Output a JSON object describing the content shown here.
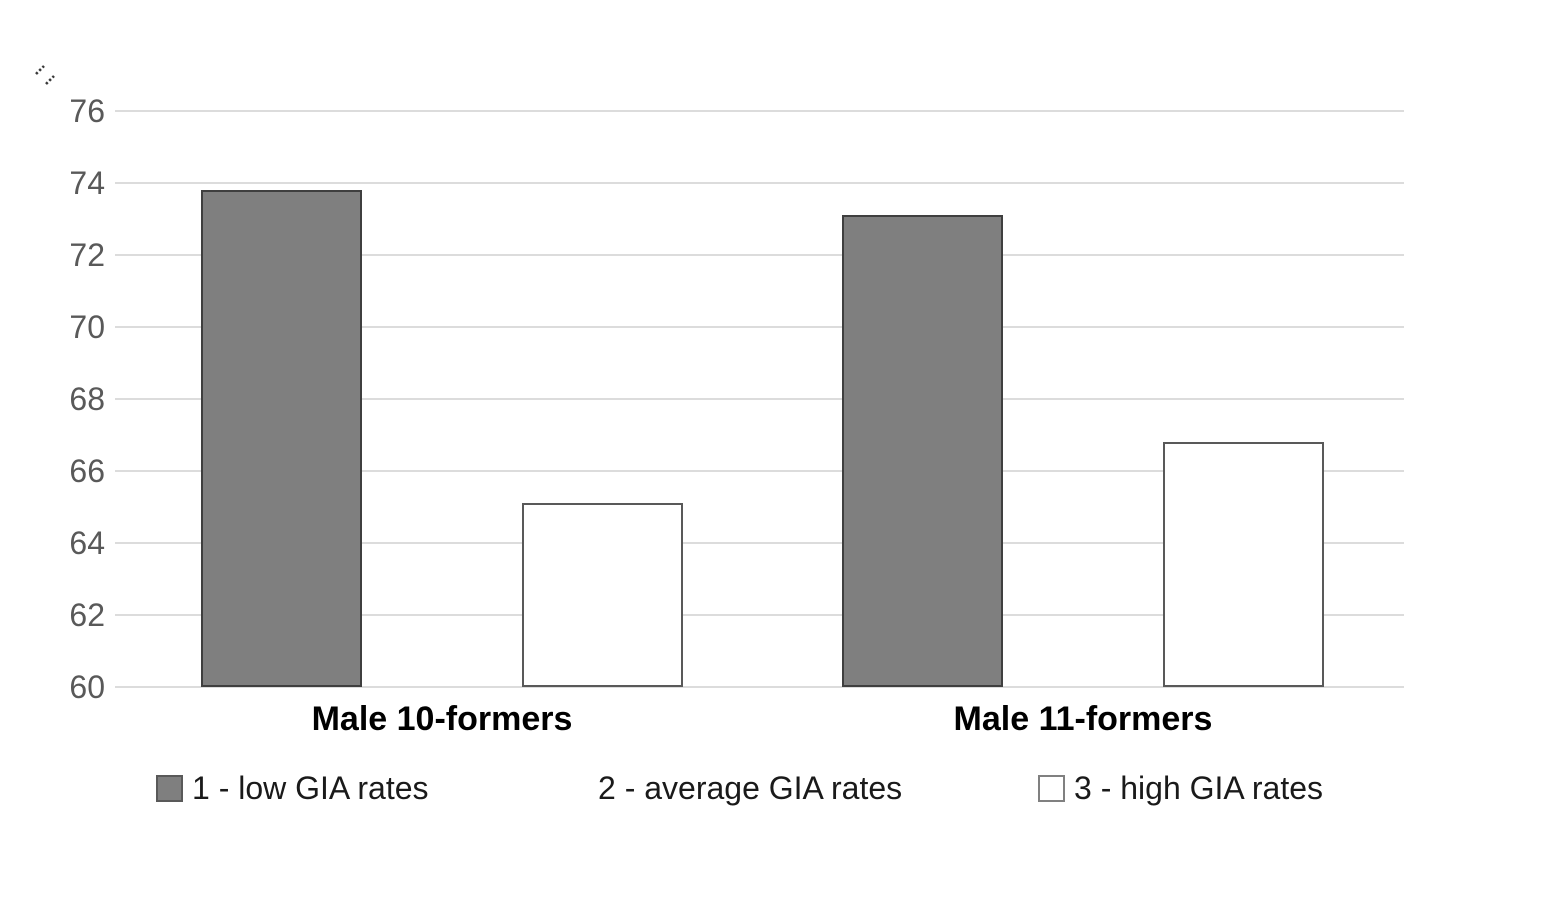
{
  "page": {
    "background": "#ffffff"
  },
  "chart_data": {
    "type": "bar",
    "title": "",
    "categories": [
      "Male 10-formers",
      "Male 11-formers"
    ],
    "series": [
      {
        "name": "1 - low GIA rates",
        "values": [
          73.8,
          73.1
        ],
        "fill": "#7f7f7f",
        "border": "#3f3f3f"
      },
      {
        "name": "2 - average GIA rates",
        "values": [
          null,
          null
        ],
        "fill": "#ffffff",
        "border": "none"
      },
      {
        "name": "3 - high GIA rates",
        "values": [
          65.1,
          66.8
        ],
        "fill": "#ffffff",
        "border": "#595959"
      }
    ],
    "xlabel": "",
    "ylabel": "",
    "ylim": [
      60,
      76
    ],
    "yticks": [
      60,
      62,
      64,
      66,
      68,
      70,
      72,
      74,
      76
    ],
    "grid": true,
    "gridline_color": "#dcdcdc",
    "tick_label_color": "#595959",
    "category_label_color": "#000000",
    "legend_position": "bottom"
  },
  "legend": {
    "items": [
      {
        "label": "1 - low GIA rates",
        "swatch_fill": "#7f7f7f",
        "swatch_border": "#595959"
      },
      {
        "label": "2 - average GIA rates",
        "swatch_fill": "none",
        "swatch_border": "none"
      },
      {
        "label": "3 - high GIA rates",
        "swatch_fill": "#ffffff",
        "swatch_border": "#808080"
      }
    ]
  }
}
